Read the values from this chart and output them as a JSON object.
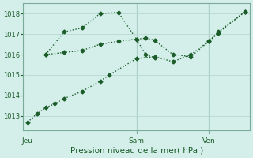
{
  "bg_color": "#d4eeea",
  "grid_color": "#b8d8d2",
  "line_color": "#1a5c28",
  "vline_color": "#7aaa98",
  "xlabel": "Pression niveau de la mer( hPa )",
  "ylim": [
    1012.3,
    1018.5
  ],
  "yticks": [
    1013,
    1014,
    1015,
    1016,
    1017,
    1018
  ],
  "xlabel_fontsize": 7.5,
  "ylabel_fontsize": 6,
  "xtick_fontsize": 6.5,
  "xtick_labels": [
    "Jeu",
    "Sam",
    "Ven"
  ],
  "xtick_positions": [
    0.0,
    0.5,
    0.833
  ],
  "vline_positions": [
    0.5,
    0.833
  ],
  "line1_x": [
    0.0,
    0.042,
    0.083,
    0.125,
    0.167,
    0.25,
    0.333,
    0.375,
    0.5,
    0.583,
    0.667,
    0.75,
    0.833,
    0.875,
    1.0
  ],
  "line1_y": [
    1012.7,
    1013.1,
    1013.4,
    1013.6,
    1013.85,
    1014.2,
    1014.7,
    1015.0,
    1015.8,
    1015.9,
    1015.65,
    1016.0,
    1016.65,
    1017.05,
    1018.1
  ],
  "line2_x": [
    0.083,
    0.167,
    0.25,
    0.333,
    0.417,
    0.5,
    0.542,
    0.583,
    0.667,
    0.75,
    0.833,
    0.875,
    1.0
  ],
  "line2_y": [
    1016.0,
    1016.1,
    1016.2,
    1016.5,
    1016.65,
    1016.75,
    1016.8,
    1016.7,
    1016.0,
    1015.9,
    1016.65,
    1017.1,
    1018.1
  ],
  "line3_x": [
    0.083,
    0.167,
    0.25,
    0.333,
    0.417,
    0.5,
    0.542,
    0.583
  ],
  "line3_y": [
    1016.0,
    1017.1,
    1017.3,
    1018.0,
    1018.05,
    1016.75,
    1016.0,
    1015.85
  ],
  "marker": "D",
  "markersize": 2.5,
  "linewidth": 1.0,
  "linestyle": ":"
}
